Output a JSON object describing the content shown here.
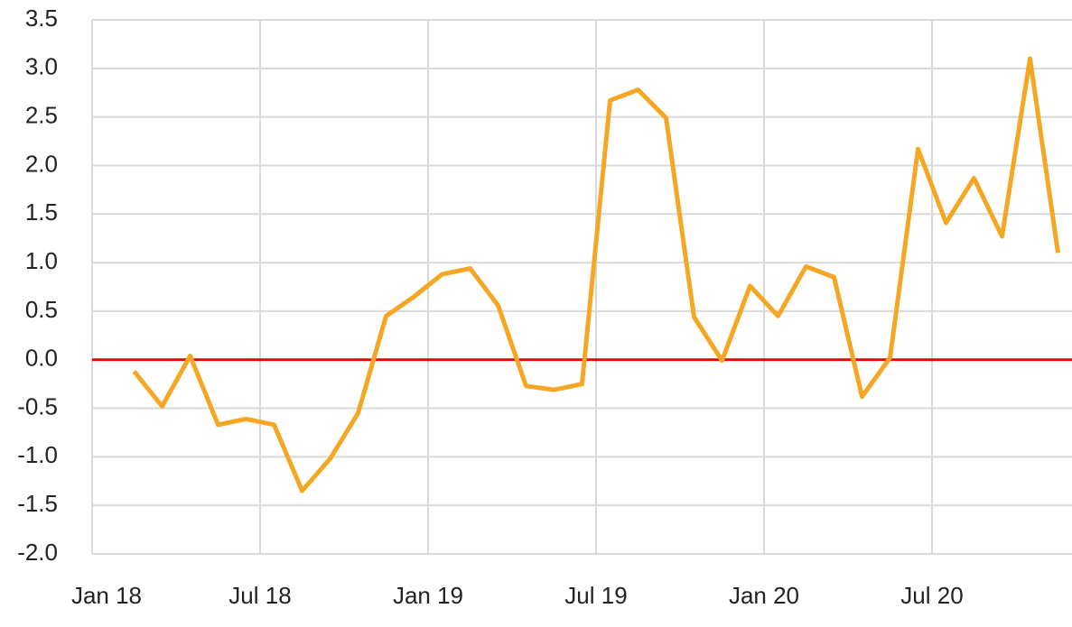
{
  "chart_data": {
    "type": "line",
    "x": [
      "2018-02",
      "2018-03",
      "2018-04",
      "2018-05",
      "2018-06",
      "2018-07",
      "2018-08",
      "2018-09",
      "2018-10",
      "2018-11",
      "2018-12",
      "2019-01",
      "2019-02",
      "2019-03",
      "2019-04",
      "2019-05",
      "2019-06",
      "2019-07",
      "2019-08",
      "2019-09",
      "2019-10",
      "2019-11",
      "2019-12",
      "2020-01",
      "2020-02",
      "2020-03",
      "2020-04",
      "2020-05",
      "2020-06",
      "2020-07",
      "2020-08",
      "2020-09",
      "2020-10",
      "2020-11"
    ],
    "series": [
      {
        "color": "#f5a623",
        "values": [
          -0.12,
          -0.48,
          0.04,
          -0.67,
          -0.61,
          -0.67,
          -1.35,
          -1.02,
          -0.55,
          0.45,
          0.65,
          0.88,
          0.94,
          0.56,
          -0.27,
          -0.31,
          -0.25,
          2.67,
          2.78,
          2.49,
          0.44,
          -0.01,
          0.76,
          0.45,
          0.96,
          0.85,
          -0.38,
          0.02,
          2.17,
          1.41,
          1.87,
          1.27,
          3.1,
          1.1
        ]
      }
    ],
    "xlim": [
      "2018-01",
      "2020-12"
    ],
    "xticks": [
      {
        "value": "2018-01",
        "label": "Jan 18"
      },
      {
        "value": "2018-07",
        "label": "Jul 18"
      },
      {
        "value": "2019-01",
        "label": "Jan 19"
      },
      {
        "value": "2019-07",
        "label": "Jul 19"
      },
      {
        "value": "2020-01",
        "label": "Jan 20"
      },
      {
        "value": "2020-07",
        "label": "Jul 20"
      }
    ],
    "ylim": [
      -2,
      3.5
    ],
    "yticks": [
      {
        "value": -2,
        "label": "-2.0"
      },
      -1.5,
      {
        "value": -1,
        "label": "-1.0"
      },
      -0.5,
      {
        "value": 0,
        "label": "0.0"
      },
      0.5,
      {
        "value": 1,
        "label": "1.0"
      },
      1.5,
      {
        "value": 2,
        "label": "2.0"
      },
      2.5,
      {
        "value": 3,
        "label": "3.0"
      },
      3.5
    ],
    "grid": true,
    "reference_line": {
      "y": 0,
      "color": "#ee0000"
    }
  }
}
